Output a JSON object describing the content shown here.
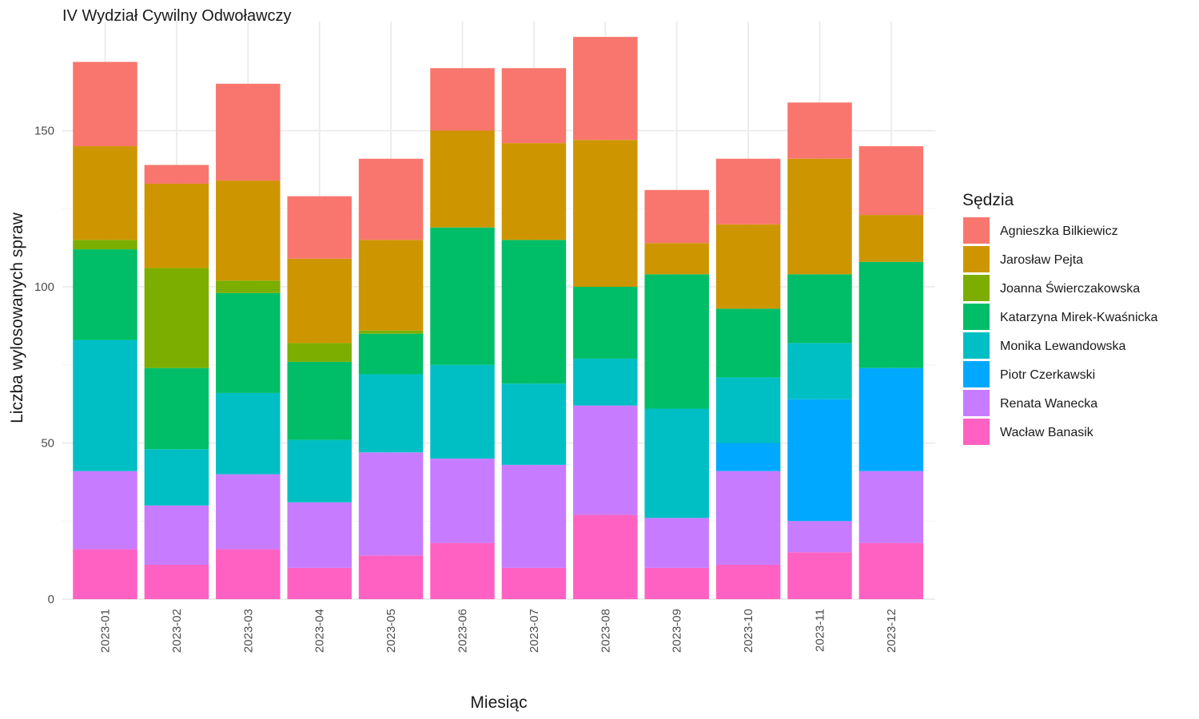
{
  "chart_data": {
    "type": "bar",
    "stacked": true,
    "title": "IV Wydział Cywilny Odwoławczy",
    "xlabel": "Miesiąc",
    "ylabel": "Liczba wylosowanych spraw",
    "ylim": [
      0,
      185
    ],
    "yticks": [
      0,
      50,
      100,
      150
    ],
    "grid": true,
    "legend": {
      "title": "Sędzia",
      "position": "right"
    },
    "categories": [
      "2023-01",
      "2023-02",
      "2023-03",
      "2023-04",
      "2023-05",
      "2023-06",
      "2023-07",
      "2023-08",
      "2023-09",
      "2023-10",
      "2023-11",
      "2023-12"
    ],
    "series": [
      {
        "name": "Wacław Banasik",
        "color": "#FF61C3",
        "values": [
          16,
          11,
          16,
          10,
          14,
          18,
          10,
          27,
          10,
          11,
          15,
          18
        ]
      },
      {
        "name": "Renata Wanecka",
        "color": "#C77CFF",
        "values": [
          25,
          19,
          24,
          21,
          33,
          27,
          33,
          35,
          16,
          30,
          10,
          23
        ]
      },
      {
        "name": "Piotr Czerkawski",
        "color": "#00A9FF",
        "values": [
          0,
          0,
          0,
          0,
          0,
          0,
          0,
          0,
          0,
          9,
          39,
          33
        ]
      },
      {
        "name": "Monika Lewandowska",
        "color": "#00BFC4",
        "values": [
          42,
          18,
          26,
          20,
          25,
          30,
          26,
          15,
          35,
          21,
          18,
          0
        ]
      },
      {
        "name": "Katarzyna Mirek-Kwaśnicka",
        "color": "#00BE67",
        "values": [
          29,
          26,
          32,
          25,
          13,
          44,
          46,
          23,
          43,
          22,
          22,
          34
        ]
      },
      {
        "name": "Joanna Świerczakowska",
        "color": "#7CAE00",
        "values": [
          3,
          32,
          4,
          6,
          1,
          0,
          0,
          0,
          0,
          0,
          0,
          0
        ]
      },
      {
        "name": "Jarosław Pejta",
        "color": "#CD9600",
        "values": [
          30,
          27,
          32,
          27,
          29,
          31,
          31,
          47,
          10,
          27,
          37,
          15
        ]
      },
      {
        "name": "Agnieszka Bilkiewicz",
        "color": "#F8766D",
        "values": [
          27,
          6,
          31,
          20,
          26,
          20,
          24,
          33,
          17,
          21,
          18,
          22
        ]
      }
    ],
    "legend_order": [
      "Agnieszka Bilkiewicz",
      "Jarosław Pejta",
      "Joanna Świerczakowska",
      "Katarzyna Mirek-Kwaśnicka",
      "Monika Lewandowska",
      "Piotr Czerkawski",
      "Renata Wanecka",
      "Wacław Banasik"
    ]
  }
}
